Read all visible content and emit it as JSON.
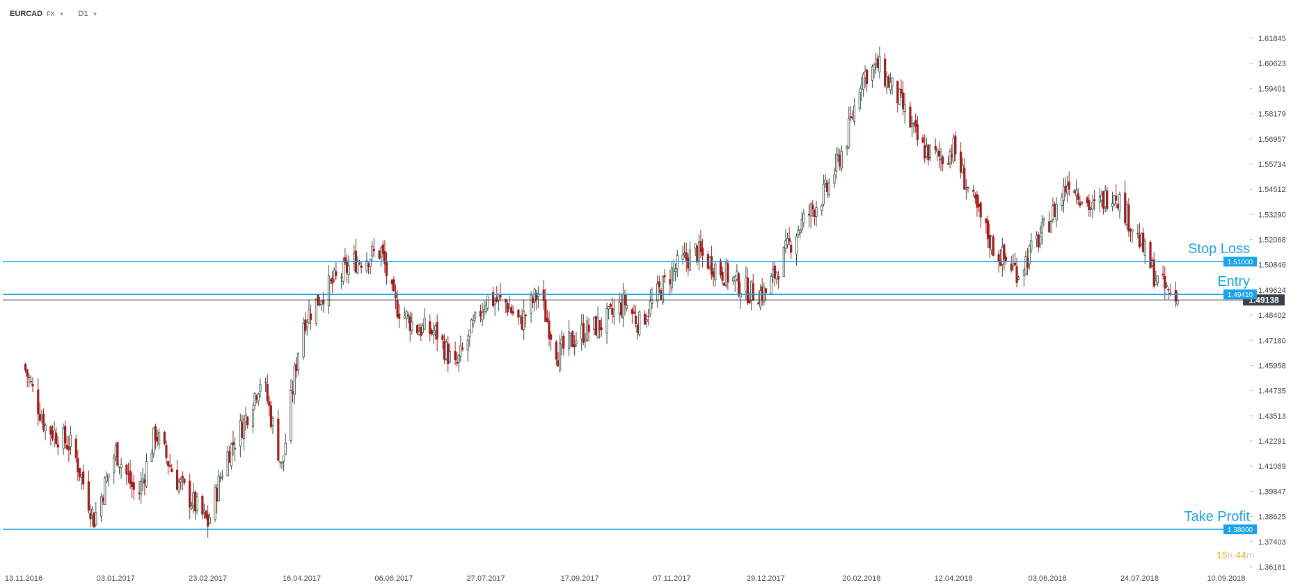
{
  "toolbar": {
    "symbol": "EURCAD",
    "market": "FX",
    "timeframe": "D1"
  },
  "timer": {
    "hours": "15",
    "hours_unit": "h",
    "minutes": "44",
    "minutes_unit": "m"
  },
  "colors": {
    "line": "#1aa3e8",
    "bull": "#2f4f3f",
    "bear": "#a21d1d",
    "price_tag": "#3a3f4b",
    "axis_text": "#444444"
  },
  "chart_data": {
    "type": "candlestick",
    "title": "",
    "ylim": [
      1.36181,
      1.61845
    ],
    "y_ticks": [
      "1.61845",
      "1.60623",
      "1.59401",
      "1.58179",
      "1.56957",
      "1.55734",
      "1.54512",
      "1.53290",
      "1.52068",
      "1.50846",
      "1.49624",
      "1.48402",
      "1.47180",
      "1.45958",
      "1.44735",
      "1.43513",
      "1.42291",
      "1.41069",
      "1.39847",
      "1.38625",
      "1.37403",
      "1.36181"
    ],
    "x_ticks": [
      "13.11.2016",
      "03.01.2017",
      "23.02.2017",
      "16.04.2017",
      "06.06.2017",
      "27.07.2017",
      "17.09.2017",
      "07.11.2017",
      "29.12.2017",
      "20.02.2018",
      "12.04.2018",
      "03.06.2018",
      "24.07.2018",
      "10.09.2018"
    ],
    "current_price": "1.49138",
    "levels": [
      {
        "name": "Stop Loss",
        "value": 1.51,
        "tag": "1.51000"
      },
      {
        "name": "Entry",
        "value": 1.4941,
        "tag": "1.49410"
      },
      {
        "name": "Take Profit",
        "value": 1.38,
        "tag": "1.38000"
      }
    ],
    "close_path": [
      [
        "2016-11-13",
        1.46
      ],
      [
        "2016-11-25",
        1.43
      ],
      [
        "2016-12-10",
        1.42
      ],
      [
        "2016-12-22",
        1.385
      ],
      [
        "2017-01-03",
        1.418
      ],
      [
        "2017-01-15",
        1.395
      ],
      [
        "2017-01-25",
        1.427
      ],
      [
        "2017-02-05",
        1.405
      ],
      [
        "2017-02-23",
        1.383
      ],
      [
        "2017-03-05",
        1.415
      ],
      [
        "2017-03-15",
        1.432
      ],
      [
        "2017-03-25",
        1.455
      ],
      [
        "2017-04-05",
        1.41
      ],
      [
        "2017-04-16",
        1.48
      ],
      [
        "2017-04-28",
        1.495
      ],
      [
        "2017-05-15",
        1.51
      ],
      [
        "2017-05-30",
        1.515
      ],
      [
        "2017-06-06",
        1.49
      ],
      [
        "2017-06-18",
        1.478
      ],
      [
        "2017-06-30",
        1.475
      ],
      [
        "2017-07-10",
        1.458
      ],
      [
        "2017-07-27",
        1.492
      ],
      [
        "2017-08-07",
        1.49
      ],
      [
        "2017-08-15",
        1.48
      ],
      [
        "2017-08-25",
        1.495
      ],
      [
        "2017-09-05",
        1.465
      ],
      [
        "2017-09-17",
        1.475
      ],
      [
        "2017-09-30",
        1.48
      ],
      [
        "2017-10-12",
        1.49
      ],
      [
        "2017-10-20",
        1.48
      ],
      [
        "2017-11-07",
        1.505
      ],
      [
        "2017-11-20",
        1.515
      ],
      [
        "2017-12-05",
        1.505
      ],
      [
        "2017-12-20",
        1.495
      ],
      [
        "2017-12-29",
        1.495
      ],
      [
        "2018-01-15",
        1.525
      ],
      [
        "2018-02-01",
        1.545
      ],
      [
        "2018-02-12",
        1.57
      ],
      [
        "2018-02-20",
        1.6
      ],
      [
        "2018-03-01",
        1.605
      ],
      [
        "2018-03-12",
        1.59
      ],
      [
        "2018-03-25",
        1.565
      ],
      [
        "2018-04-05",
        1.56
      ],
      [
        "2018-04-12",
        1.565
      ],
      [
        "2018-04-22",
        1.54
      ],
      [
        "2018-05-05",
        1.515
      ],
      [
        "2018-05-18",
        1.505
      ],
      [
        "2018-06-03",
        1.528
      ],
      [
        "2018-06-15",
        1.55
      ],
      [
        "2018-06-28",
        1.535
      ],
      [
        "2018-07-10",
        1.545
      ],
      [
        "2018-07-24",
        1.52
      ],
      [
        "2018-08-03",
        1.5
      ],
      [
        "2018-08-14",
        1.491
      ]
    ]
  }
}
